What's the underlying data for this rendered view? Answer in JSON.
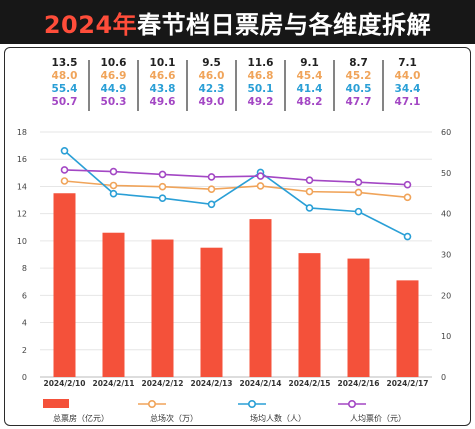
{
  "header": {
    "title_year": "2024年",
    "title_rest": "春节档日票房与各维度拆解"
  },
  "colors": {
    "bar": "#f4513a",
    "line_sessions": "#f0a45a",
    "line_attendance": "#2a9fd6",
    "line_ticket_price": "#a347c4",
    "banner_bg": "#171717",
    "title_red": "#ff4d3a"
  },
  "chart_data": {
    "type": "bar+line",
    "categories": [
      "2024/2/10",
      "2024/2/11",
      "2024/2/12",
      "2024/2/13",
      "2024/2/14",
      "2024/2/15",
      "2024/2/16",
      "2024/2/17"
    ],
    "y_left": {
      "range": [
        0,
        18
      ],
      "ticks": [
        "0",
        "2",
        "4",
        "6",
        "8",
        "10",
        "12",
        "14",
        "16",
        "18"
      ]
    },
    "y_right": {
      "range": [
        0,
        60
      ],
      "ticks": [
        "0",
        "10",
        "20",
        "30",
        "40",
        "50",
        "60"
      ]
    },
    "grid": true,
    "legend_position": "bottom",
    "series": [
      {
        "name": "总票房（亿元）",
        "kind": "bar",
        "axis": "left",
        "color": "#f4513a",
        "values": [
          13.5,
          10.6,
          10.1,
          9.5,
          11.6,
          9.1,
          8.7,
          7.1
        ],
        "labels": [
          "13.5",
          "10.6",
          "10.1",
          "9.5",
          "11.6",
          "9.1",
          "8.7",
          "7.1"
        ]
      },
      {
        "name": "总场次（万）",
        "kind": "line",
        "axis": "right",
        "color": "#f0a45a",
        "values": [
          48.0,
          46.9,
          46.6,
          46.0,
          46.8,
          45.4,
          45.2,
          44.0
        ],
        "labels": [
          "48.0",
          "46.9",
          "46.6",
          "46.0",
          "46.8",
          "45.4",
          "45.2",
          "44.0"
        ]
      },
      {
        "name": "场均人数（人）",
        "kind": "line",
        "axis": "right",
        "color": "#2a9fd6",
        "values": [
          55.4,
          44.9,
          43.8,
          42.3,
          50.1,
          41.4,
          40.5,
          34.4
        ],
        "labels": [
          "55.4",
          "44.9",
          "43.8",
          "42.3",
          "50.1",
          "41.4",
          "40.5",
          "34.4"
        ]
      },
      {
        "name": "人均票价（元）",
        "kind": "line",
        "axis": "right",
        "color": "#a347c4",
        "values": [
          50.7,
          50.3,
          49.6,
          49.0,
          49.2,
          48.2,
          47.7,
          47.1
        ],
        "labels": [
          "50.7",
          "50.3",
          "49.6",
          "49.0",
          "49.2",
          "48.2",
          "47.7",
          "47.1"
        ]
      }
    ]
  }
}
